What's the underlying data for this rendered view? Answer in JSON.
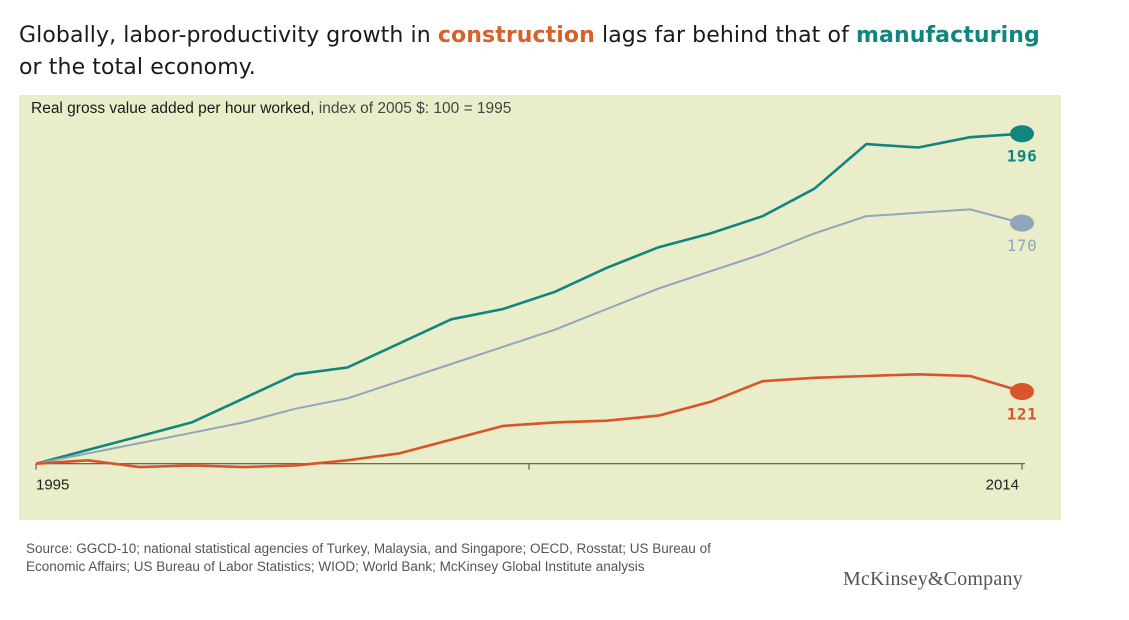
{
  "headline": {
    "part1": "Globally, labor-productivity growth in ",
    "highlight1": "construction",
    "part2": " lags far behind that of ",
    "highlight2": "manufacturing",
    "part3": " or the total economy."
  },
  "chart_data": {
    "type": "line",
    "title_bold": "Real gross value added per hour worked,",
    "title_rest": " index of 2005 $: 100 = 1995",
    "x": [
      1995,
      1996,
      1997,
      1998,
      1999,
      2000,
      2001,
      2002,
      2003,
      2004,
      2005,
      2006,
      2007,
      2008,
      2009,
      2010,
      2011,
      2012,
      2013,
      2014
    ],
    "x_tick_labels": [
      "1995",
      "2014"
    ],
    "ylim": [
      97,
      200
    ],
    "grid": false,
    "series": [
      {
        "key": "manufacturing",
        "color": "#11857f",
        "values": [
          100,
          104,
          108,
          112,
          119,
          126,
          128,
          135,
          142,
          145,
          150,
          157,
          163,
          167,
          172,
          180,
          193,
          192,
          195,
          196
        ],
        "end_label": "196"
      },
      {
        "key": "total",
        "color": "#8fa7b8",
        "values": [
          100,
          103,
          106,
          109,
          112,
          116,
          119,
          124,
          129,
          134,
          139,
          145,
          151,
          156,
          161,
          167,
          172,
          173,
          174,
          170
        ],
        "end_label": "170"
      },
      {
        "key": "construction",
        "color": "#d9542a",
        "values": [
          100,
          101,
          99,
          99.5,
          99,
          99.5,
          101,
          103,
          107,
          111,
          112,
          112.5,
          114,
          118,
          124,
          125,
          125.5,
          126,
          125.5,
          121
        ],
        "end_label": "121"
      }
    ]
  },
  "source": "Source: GGCD-10; national statistical agencies of Turkey, Malaysia, and Singapore; OECD, Rosstat; US Bureau of Economic Affairs; US Bureau of Labor Statistics; WIOD; World Bank; McKinsey Global Institute analysis",
  "logo": "McKinsey&Company"
}
